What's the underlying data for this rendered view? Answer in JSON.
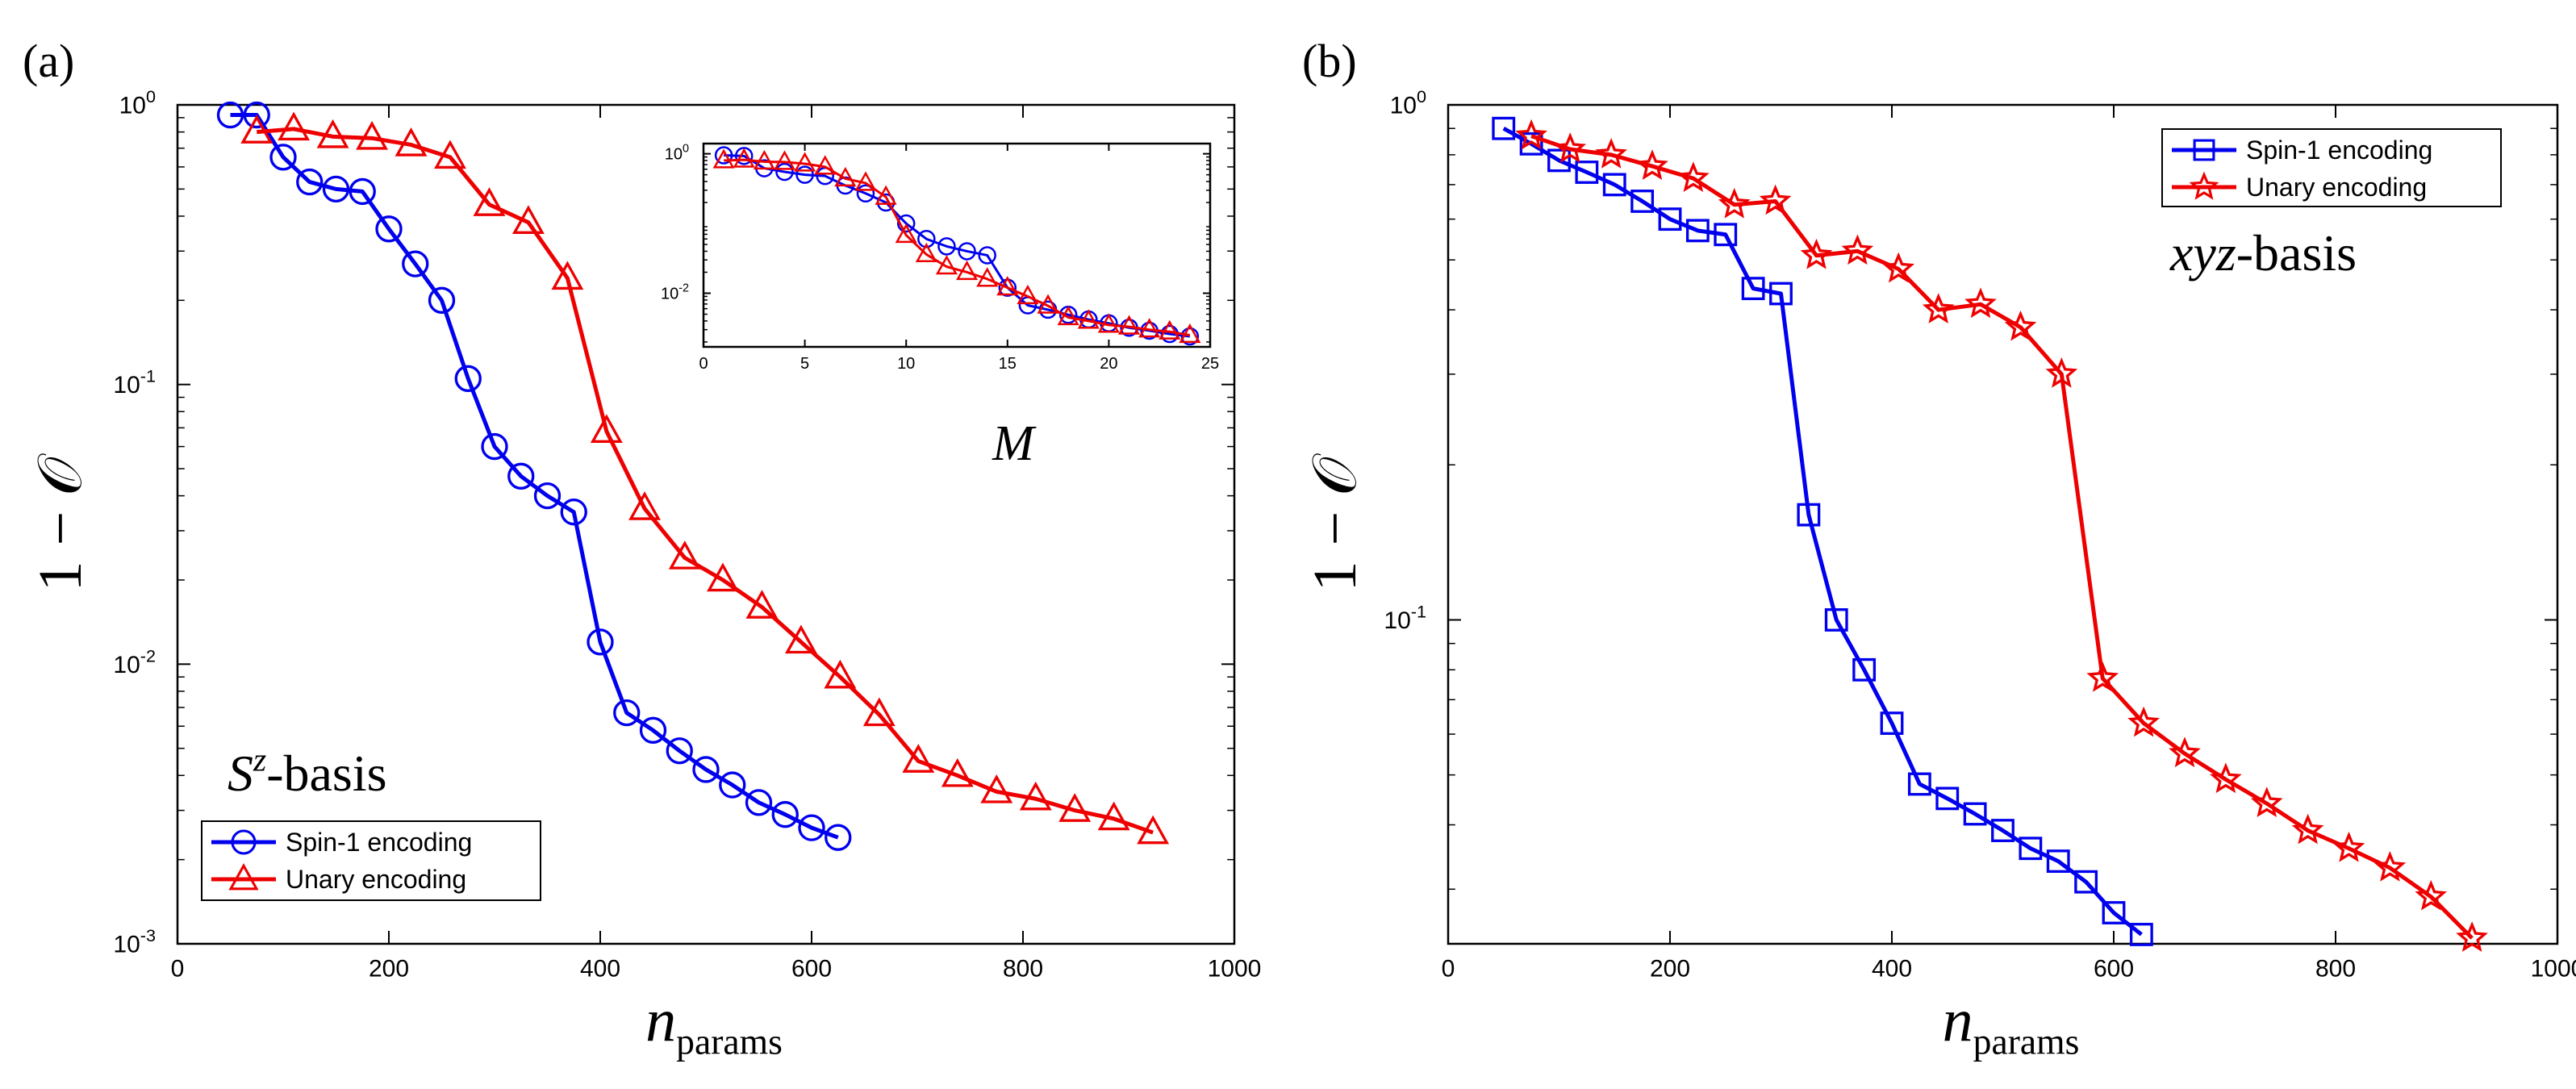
{
  "figure": {
    "panel_a_label": "(a)",
    "panel_b_label": "(b)"
  },
  "chart_data": [
    {
      "id": "a-main",
      "type": "line",
      "yscale": "log",
      "xlim": [
        0,
        1000
      ],
      "ylim": [
        0.001,
        1
      ],
      "xticks": [
        0,
        200,
        400,
        600,
        800,
        1000
      ],
      "yticks": [
        0.001,
        0.01,
        0.1,
        1
      ],
      "yticklabels": [
        [
          "10",
          "-3"
        ],
        [
          "10",
          "-2"
        ],
        [
          "10",
          "-1"
        ],
        [
          "10",
          "0"
        ]
      ],
      "xlabel": {
        "main": "n",
        "sub": "params"
      },
      "ylabel": "1 − 𝒪",
      "annotation": {
        "main": "S",
        "sup": "z",
        "rest": "-basis"
      },
      "legend_position": "bottom-left",
      "series": [
        {
          "name": "Spin-1 encoding",
          "color": "#0000ee",
          "marker": "circle",
          "x": [
            50,
            75,
            100,
            125,
            150,
            175,
            200,
            225,
            250,
            275,
            300,
            325,
            350,
            375,
            400,
            425,
            450,
            475,
            500,
            525,
            550,
            575,
            600,
            625
          ],
          "y": [
            0.92,
            0.92,
            0.65,
            0.53,
            0.5,
            0.49,
            0.36,
            0.27,
            0.2,
            0.105,
            0.06,
            0.047,
            0.04,
            0.035,
            0.012,
            0.0067,
            0.0058,
            0.0049,
            0.0042,
            0.0037,
            0.0032,
            0.0029,
            0.0026,
            0.0024
          ]
        },
        {
          "name": "Unary encoding",
          "color": "#ee0000",
          "marker": "triangle",
          "x": [
            75,
            110,
            147,
            184,
            221,
            258,
            295,
            332,
            369,
            406,
            442,
            480,
            516,
            553,
            590,
            627,
            664,
            701,
            738,
            775,
            812,
            849,
            886,
            923
          ],
          "y": [
            0.8,
            0.82,
            0.77,
            0.76,
            0.72,
            0.65,
            0.44,
            0.38,
            0.24,
            0.068,
            0.036,
            0.024,
            0.02,
            0.016,
            0.012,
            0.009,
            0.0066,
            0.0045,
            0.004,
            0.0035,
            0.0033,
            0.003,
            0.0028,
            0.0025
          ]
        }
      ]
    },
    {
      "id": "a-inset",
      "type": "line",
      "yscale": "log",
      "xlim": [
        0,
        25
      ],
      "ylim": [
        0.0017,
        1.4
      ],
      "xticks": [
        0,
        5,
        10,
        15,
        20,
        25
      ],
      "yticks": [
        0.01,
        1
      ],
      "yticklabels": [
        [
          "10",
          "-2"
        ],
        [
          "10",
          "0"
        ]
      ],
      "xlabel": "M",
      "series": [
        {
          "name": "Spin-1 encoding",
          "color": "#0000ee",
          "marker": "circle",
          "x": [
            1,
            2,
            3,
            4,
            5,
            6,
            7,
            8,
            9,
            10,
            11,
            12,
            13,
            14,
            15,
            16,
            17,
            18,
            19,
            20,
            21,
            22,
            23,
            24
          ],
          "y": [
            0.95,
            0.93,
            0.62,
            0.55,
            0.5,
            0.48,
            0.35,
            0.27,
            0.2,
            0.1,
            0.06,
            0.047,
            0.04,
            0.035,
            0.012,
            0.0067,
            0.0058,
            0.0049,
            0.0042,
            0.0037,
            0.0032,
            0.0029,
            0.0026,
            0.0024
          ]
        },
        {
          "name": "Unary encoding",
          "color": "#ee0000",
          "marker": "triangle",
          "x": [
            1,
            2,
            3,
            4,
            5,
            6,
            7,
            8,
            9,
            10,
            11,
            12,
            13,
            14,
            15,
            16,
            17,
            18,
            19,
            20,
            21,
            22,
            23,
            24
          ],
          "y": [
            0.8,
            0.82,
            0.77,
            0.76,
            0.72,
            0.65,
            0.44,
            0.38,
            0.24,
            0.068,
            0.036,
            0.024,
            0.02,
            0.016,
            0.012,
            0.009,
            0.0066,
            0.0045,
            0.004,
            0.0035,
            0.0033,
            0.003,
            0.0028,
            0.0025
          ]
        }
      ]
    },
    {
      "id": "b-main",
      "type": "line",
      "yscale": "log",
      "xlim": [
        0,
        1000
      ],
      "ylim": [
        0.0235,
        1
      ],
      "xticks": [
        0,
        200,
        400,
        600,
        800,
        1000
      ],
      "yticks": [
        0.1,
        1
      ],
      "yticklabels": [
        [
          "10",
          "-1"
        ],
        [
          "10",
          "0"
        ]
      ],
      "xlabel": {
        "main": "n",
        "sub": "params"
      },
      "ylabel": "1 − 𝒪",
      "annotation": {
        "main": "xyz",
        "sup": "",
        "rest": "-basis"
      },
      "legend_position": "top-right",
      "series": [
        {
          "name": "Spin-1 encoding",
          "color": "#0000ee",
          "marker": "square",
          "x": [
            50,
            75,
            100,
            125,
            150,
            175,
            200,
            225,
            250,
            275,
            300,
            325,
            350,
            375,
            400,
            425,
            450,
            475,
            500,
            525,
            550,
            575,
            600,
            625
          ],
          "y": [
            0.9,
            0.84,
            0.78,
            0.74,
            0.7,
            0.65,
            0.6,
            0.57,
            0.56,
            0.44,
            0.43,
            0.16,
            0.1,
            0.08,
            0.063,
            0.048,
            0.045,
            0.042,
            0.039,
            0.036,
            0.034,
            0.031,
            0.027,
            0.0245
          ]
        },
        {
          "name": "Unary encoding",
          "color": "#ee0000",
          "marker": "star",
          "x": [
            75,
            110,
            147,
            184,
            221,
            258,
            295,
            332,
            369,
            406,
            442,
            480,
            516,
            553,
            590,
            627,
            664,
            701,
            738,
            775,
            812,
            849,
            886,
            923
          ],
          "y": [
            0.87,
            0.82,
            0.8,
            0.76,
            0.72,
            0.64,
            0.65,
            0.51,
            0.52,
            0.48,
            0.4,
            0.41,
            0.37,
            0.3,
            0.077,
            0.063,
            0.055,
            0.049,
            0.044,
            0.039,
            0.036,
            0.033,
            0.029,
            0.0241
          ]
        }
      ]
    }
  ]
}
